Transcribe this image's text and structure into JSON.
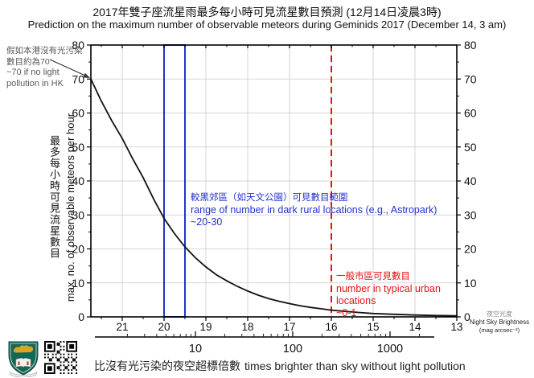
{
  "title": {
    "zh": "2017年雙子座流星雨最多每小時可見流星數目預測 (12月14日凌晨3時)",
    "en": "Prediction on the maximum number of observable meteors during Geminids 2017 (December 14, 3 am)"
  },
  "y_axis": {
    "label_zh": "最多每小時可見流星數目",
    "label_en": "max. no. of observable meteors per hour"
  },
  "x_axis": {
    "label_zh": "夜空光度",
    "label_en": "Night Sky Brightness",
    "label_unit": "(mag arcsec⁻²)"
  },
  "caption": {
    "zh": "比沒有光污染的夜空超標倍數",
    "en": "times brighter than sky without light pollution"
  },
  "annotations": {
    "no_pollution": {
      "lines": [
        "假如本港沒有光污染",
        "數目約為70",
        "~70 if no light",
        "pollution in HK"
      ]
    },
    "dark_rural": {
      "lines": [
        "較黑郊區（如天文公園）可見數目範圍",
        "range of number in dark rural locations (e.g., Astropark)",
        "~20-30"
      ]
    },
    "urban": {
      "lines": [
        "一般市區可見數目",
        "number in typical urban locations",
        "~0-1"
      ]
    }
  },
  "colors": {
    "curve": "#111111",
    "grid": "#c9c9c9",
    "axis": "#000000",
    "blue_accent": "#2233cc",
    "red_accent": "#e81111",
    "crest_teal": "#11685a",
    "crest_gold": "#d8a622"
  },
  "chart_data": {
    "type": "line",
    "title": "Prediction on the maximum number of observable meteors during Geminids 2017 (December 14, 3 am)",
    "xlabel": "Night Sky Brightness (mag arcsec⁻²)",
    "ylabel": "max. no. of observable meteors per hour",
    "x2label": "times brighter than sky without light pollution",
    "x_reversed": true,
    "xlim": [
      21.75,
      13.0
    ],
    "ylim": [
      0,
      80
    ],
    "x_ticks": [
      21,
      20,
      19,
      18,
      17,
      16,
      15,
      14,
      13
    ],
    "x_minor_step": 0.5,
    "y_ticks": [
      0,
      10,
      20,
      30,
      40,
      50,
      60,
      70,
      80
    ],
    "y_minor_step": 5,
    "x2_ticks": [
      10,
      100,
      1000
    ],
    "x2_range": [
      0.93,
      2850
    ],
    "grid": true,
    "curve": [
      [
        21.75,
        70
      ],
      [
        21.5,
        63.5
      ],
      [
        21.25,
        57.7
      ],
      [
        21.0,
        52.5
      ],
      [
        20.75,
        46.5
      ],
      [
        20.5,
        41.0
      ],
      [
        20.25,
        34.7
      ],
      [
        20.0,
        29.0
      ],
      [
        19.75,
        24.5
      ],
      [
        19.5,
        20.6
      ],
      [
        19.25,
        17.4
      ],
      [
        19.0,
        14.7
      ],
      [
        18.75,
        12.4
      ],
      [
        18.5,
        10.6
      ],
      [
        18.25,
        9.0
      ],
      [
        18.0,
        7.6
      ],
      [
        17.75,
        6.4
      ],
      [
        17.5,
        5.4
      ],
      [
        17.25,
        4.6
      ],
      [
        17.0,
        3.9
      ],
      [
        16.75,
        3.3
      ],
      [
        16.5,
        2.8
      ],
      [
        16.25,
        2.4
      ],
      [
        16.0,
        2.0
      ],
      [
        15.75,
        1.7
      ],
      [
        15.5,
        1.45
      ],
      [
        15.25,
        1.2
      ],
      [
        15.0,
        1.0
      ],
      [
        14.5,
        0.75
      ],
      [
        14.0,
        0.55
      ],
      [
        13.5,
        0.4
      ],
      [
        13.0,
        0.3
      ]
    ],
    "blue_box": {
      "x_from": 20.0,
      "x_to": 19.5,
      "y_from": 0,
      "y_to": 80
    },
    "red_dashed_line_x": 16,
    "arrow_points_to": [
      21.75,
      70
    ]
  }
}
